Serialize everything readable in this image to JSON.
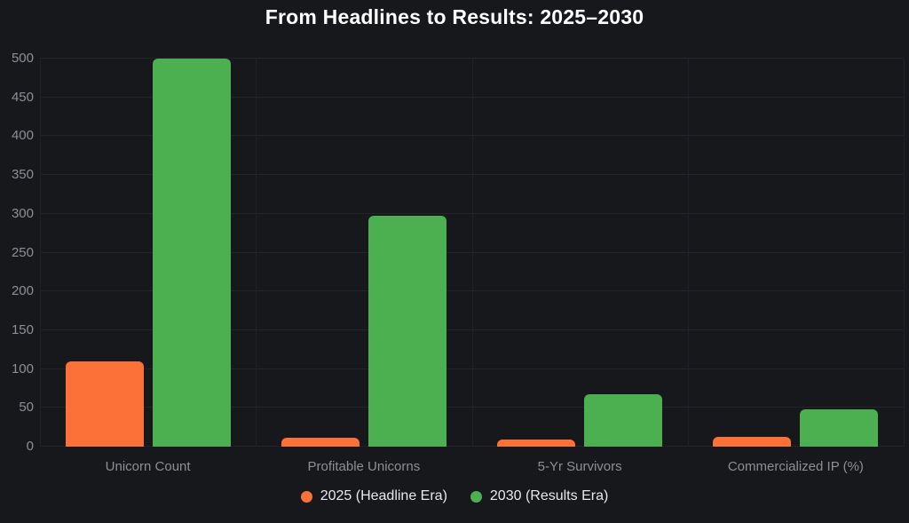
{
  "title": "From Headlines to Results: 2025–2030",
  "colors": {
    "background": "#17181c",
    "grid": "#22242b",
    "axis": "#2c2f37",
    "tick_label": "#8d8f95",
    "category_label": "#8d8f95",
    "legend_text": "#e8e9eb",
    "series_orange": "#fb7138",
    "series_green": "#4caf50"
  },
  "chart_data": {
    "type": "bar",
    "title": "From Headlines to Results: 2025–2030",
    "categories": [
      "Unicorn Count",
      "Profitable Unicorns",
      "5-Yr Survivors",
      "Commercialized IP (%)"
    ],
    "series": [
      {
        "name": "2025 (Headline Era)",
        "color": "#fb7138",
        "values": [
          110,
          12,
          9,
          13
        ]
      },
      {
        "name": "2030 (Results Era)",
        "color": "#4caf50",
        "values": [
          500,
          298,
          68,
          48
        ]
      }
    ],
    "xlabel": "",
    "ylabel": "",
    "ylim": [
      0,
      500
    ],
    "ytick_step": 50,
    "yticks": [
      "0",
      "50",
      "100",
      "150",
      "200",
      "250",
      "300",
      "350",
      "400",
      "450",
      "500"
    ],
    "grid": true,
    "legend_position": "bottom"
  }
}
